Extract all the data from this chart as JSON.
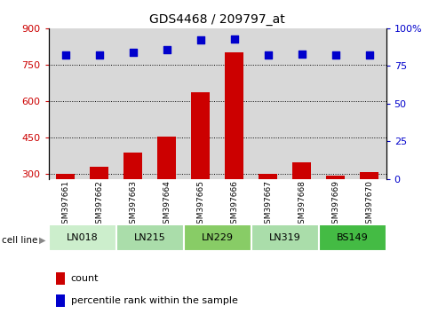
{
  "title": "GDS4468 / 209797_at",
  "samples": [
    "GSM397661",
    "GSM397662",
    "GSM397663",
    "GSM397664",
    "GSM397665",
    "GSM397666",
    "GSM397667",
    "GSM397668",
    "GSM397669",
    "GSM397670"
  ],
  "counts": [
    300,
    332,
    388,
    453,
    638,
    800,
    300,
    348,
    292,
    308
  ],
  "percentile_ranks": [
    82,
    82,
    84,
    86,
    92,
    93,
    82,
    83,
    82,
    82
  ],
  "cell_lines": [
    {
      "name": "LN018",
      "samples": [
        0,
        1
      ],
      "color": "#cceecc"
    },
    {
      "name": "LN215",
      "samples": [
        2,
        3
      ],
      "color": "#aaddaa"
    },
    {
      "name": "LN229",
      "samples": [
        4,
        5
      ],
      "color": "#88cc66"
    },
    {
      "name": "LN319",
      "samples": [
        6,
        7
      ],
      "color": "#aaddaa"
    },
    {
      "name": "BS149",
      "samples": [
        8,
        9
      ],
      "color": "#44bb44"
    }
  ],
  "ylim_left": [
    280,
    900
  ],
  "ylim_right": [
    0,
    100
  ],
  "yticks_left": [
    300,
    450,
    600,
    750,
    900
  ],
  "yticks_right": [
    0,
    25,
    50,
    75,
    100
  ],
  "bar_color": "#cc0000",
  "dot_color": "#0000cc",
  "bar_width": 0.55,
  "background_color": "#ffffff",
  "plot_bg_color": "#d8d8d8",
  "grid_color": "#000000",
  "left_label_color": "#cc0000",
  "right_label_color": "#0000cc"
}
